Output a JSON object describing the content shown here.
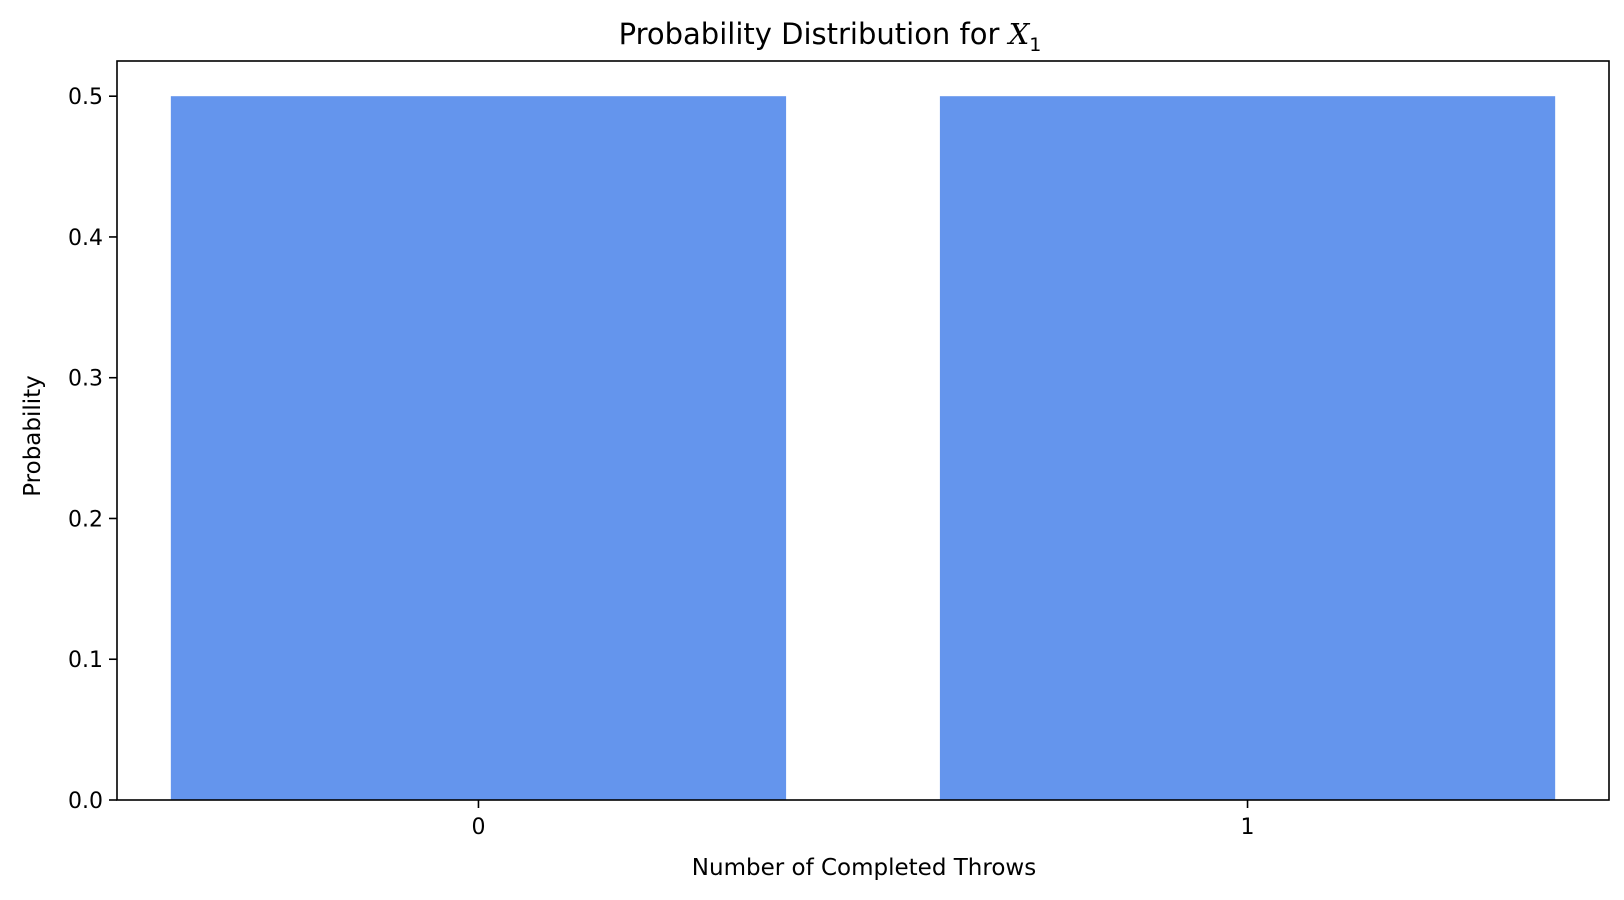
{
  "chart_data": {
    "type": "bar",
    "title": "Probability Distribution for ",
    "title_var": "X",
    "title_sub": "1",
    "xlabel": "Number of Completed Throws",
    "ylabel": "Probability",
    "categories": [
      "0",
      "1"
    ],
    "values": [
      0.5,
      0.5
    ],
    "ylim": [
      0,
      0.525
    ],
    "yticks": [
      0.0,
      0.1,
      0.2,
      0.3,
      0.4,
      0.5
    ],
    "ytick_labels": [
      "0.0",
      "0.1",
      "0.2",
      "0.3",
      "0.4",
      "0.5"
    ],
    "bar_color": "#6495ED",
    "grid": false,
    "legend": "none"
  }
}
